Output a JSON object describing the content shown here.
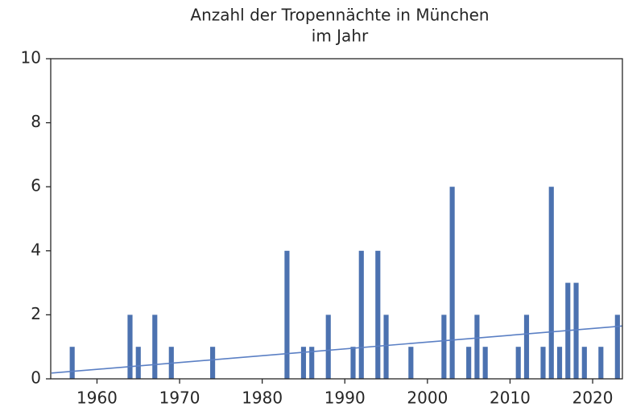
{
  "chart_data": {
    "type": "bar",
    "title": [
      "Anzahl der Tropennächte in München",
      "im Jahr"
    ],
    "x": [
      1957,
      1964,
      1965,
      1967,
      1969,
      1974,
      1983,
      1985,
      1986,
      1988,
      1991,
      1992,
      1994,
      1995,
      1998,
      2002,
      2003,
      2005,
      2006,
      2007,
      2011,
      2012,
      2014,
      2015,
      2016,
      2017,
      2018,
      2019,
      2021,
      2023
    ],
    "values": [
      1,
      2,
      1,
      2,
      1,
      1,
      4,
      1,
      1,
      2,
      1,
      4,
      4,
      2,
      1,
      2,
      6,
      1,
      2,
      1,
      1,
      2,
      1,
      6,
      1,
      3,
      3,
      1,
      1,
      2
    ],
    "color": "#4c72b0",
    "trend": {
      "x": [
        1954.5,
        2023.6
      ],
      "values": [
        0.18,
        1.65
      ],
      "color": "#5a7fc4"
    },
    "xlim": [
      1954.4,
      2023.6
    ],
    "xticks": [
      1960,
      1970,
      1980,
      1990,
      2000,
      2010,
      2020
    ],
    "ylim": [
      0,
      10
    ],
    "yticks": [
      0,
      2,
      4,
      6,
      8,
      10
    ]
  }
}
